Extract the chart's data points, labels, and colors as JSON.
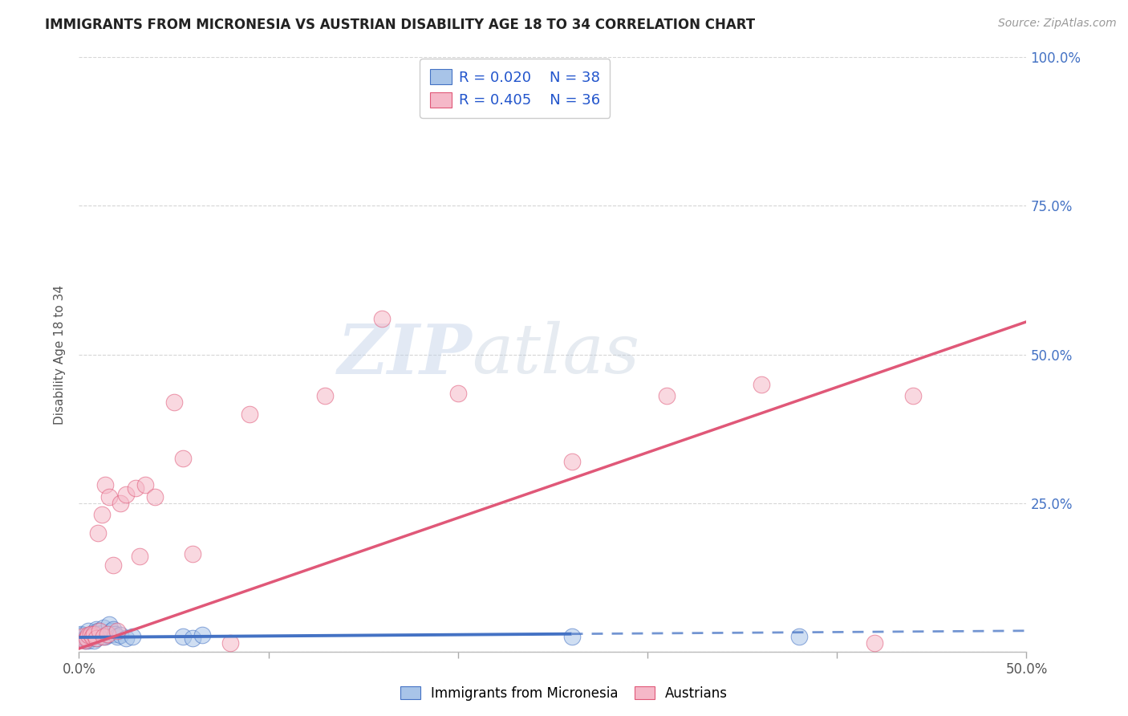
{
  "title": "IMMIGRANTS FROM MICRONESIA VS AUSTRIAN DISABILITY AGE 18 TO 34 CORRELATION CHART",
  "source": "Source: ZipAtlas.com",
  "ylabel": "Disability Age 18 to 34",
  "legend_label1": "Immigrants from Micronesia",
  "legend_label2": "Austrians",
  "r1": "0.020",
  "n1": "38",
  "r2": "0.405",
  "n2": "36",
  "color_blue": "#a8c4e8",
  "color_pink": "#f5b8c8",
  "line_blue": "#4472c4",
  "line_pink": "#e05878",
  "watermark_zip": "ZIP",
  "watermark_atlas": "atlas",
  "xlim": [
    0.0,
    0.5
  ],
  "ylim": [
    0.0,
    1.0
  ],
  "blue_line_slope": 0.022,
  "blue_line_intercept": 0.024,
  "pink_line_slope": 1.1,
  "pink_line_intercept": 0.005,
  "blue_scatter_x": [
    0.001,
    0.002,
    0.003,
    0.003,
    0.004,
    0.004,
    0.005,
    0.005,
    0.006,
    0.006,
    0.007,
    0.007,
    0.008,
    0.008,
    0.009,
    0.009,
    0.01,
    0.01,
    0.011,
    0.012,
    0.013,
    0.013,
    0.014,
    0.015,
    0.015,
    0.016,
    0.017,
    0.018,
    0.019,
    0.02,
    0.022,
    0.025,
    0.028,
    0.055,
    0.06,
    0.065,
    0.26,
    0.38
  ],
  "blue_scatter_y": [
    0.03,
    0.028,
    0.022,
    0.018,
    0.025,
    0.02,
    0.035,
    0.018,
    0.028,
    0.022,
    0.03,
    0.025,
    0.032,
    0.018,
    0.038,
    0.022,
    0.028,
    0.035,
    0.03,
    0.025,
    0.032,
    0.04,
    0.025,
    0.03,
    0.028,
    0.045,
    0.035,
    0.038,
    0.03,
    0.025,
    0.028,
    0.022,
    0.025,
    0.025,
    0.022,
    0.028,
    0.025,
    0.025
  ],
  "pink_scatter_x": [
    0.002,
    0.003,
    0.004,
    0.005,
    0.006,
    0.007,
    0.008,
    0.009,
    0.01,
    0.011,
    0.012,
    0.013,
    0.014,
    0.015,
    0.016,
    0.018,
    0.02,
    0.022,
    0.025,
    0.03,
    0.032,
    0.035,
    0.04,
    0.05,
    0.055,
    0.06,
    0.08,
    0.09,
    0.13,
    0.16,
    0.2,
    0.26,
    0.31,
    0.36,
    0.42,
    0.44
  ],
  "pink_scatter_y": [
    0.025,
    0.018,
    0.022,
    0.028,
    0.03,
    0.025,
    0.03,
    0.022,
    0.2,
    0.035,
    0.23,
    0.025,
    0.28,
    0.03,
    0.26,
    0.145,
    0.035,
    0.25,
    0.265,
    0.275,
    0.16,
    0.28,
    0.26,
    0.42,
    0.325,
    0.165,
    0.015,
    0.4,
    0.43,
    0.56,
    0.435,
    0.32,
    0.43,
    0.45,
    0.015,
    0.43
  ]
}
